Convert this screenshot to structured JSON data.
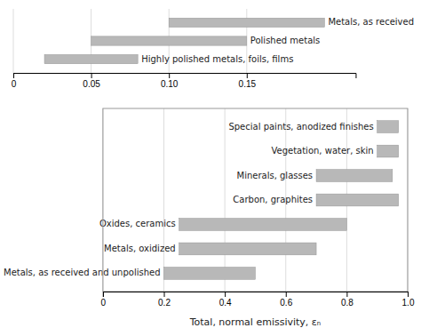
{
  "chart_data": [
    {
      "type": "bar",
      "orientation": "horizontal",
      "categories": [
        "Highly polished metals, foils, films",
        "Polished metals",
        "Metals, as received"
      ],
      "low": [
        0.02,
        0.05,
        0.1
      ],
      "high": [
        0.08,
        0.15,
        0.2
      ],
      "color": "#b8b8b8",
      "xlim": [
        0,
        0.22
      ],
      "xticks": [
        0,
        0.05,
        {
          "value": 0.1,
          "label": "0.10"
        },
        0.15
      ],
      "grid": true
    },
    {
      "type": "bar",
      "orientation": "horizontal",
      "categories": [
        "Metals, as received and unpolished",
        "Metals, oxidized",
        "Oxides, ceramics",
        "Carbon, graphites",
        "Minerals, glasses",
        "Vegetation, water, skin",
        "Special paints, anodized finishes"
      ],
      "low": [
        0.2,
        0.25,
        0.25,
        0.7,
        0.7,
        0.9,
        0.9
      ],
      "high": [
        0.5,
        0.7,
        0.8,
        0.97,
        0.95,
        0.97,
        0.97
      ],
      "color": "#b8b8b8",
      "xlim": [
        0,
        1.0
      ],
      "xticks": [
        0,
        0.2,
        0.4,
        0.6,
        0.8,
        {
          "value": 1.0,
          "label": "1.0"
        }
      ],
      "xlabel": "Total, normal emissivity,  εₙ",
      "grid": true
    }
  ]
}
